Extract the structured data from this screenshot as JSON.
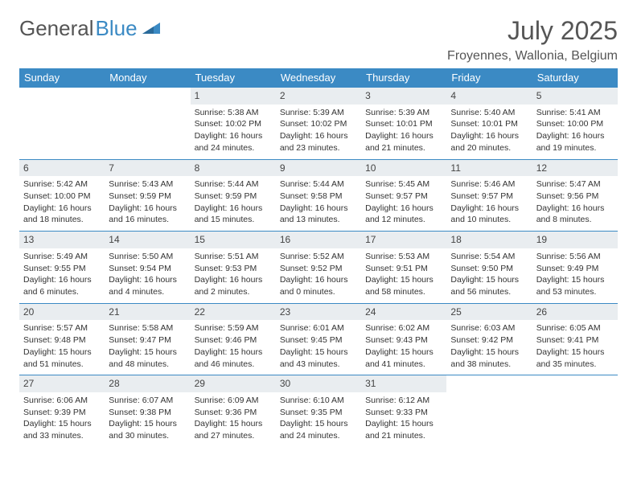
{
  "brand": {
    "name1": "General",
    "name2": "Blue"
  },
  "title": "July 2025",
  "location": "Froyennes, Wallonia, Belgium",
  "weekdays": [
    "Sunday",
    "Monday",
    "Tuesday",
    "Wednesday",
    "Thursday",
    "Friday",
    "Saturday"
  ],
  "colors": {
    "accent": "#3b8ac4",
    "dayrow_bg": "#e9edf0",
    "text": "#333"
  },
  "weeks": [
    [
      null,
      null,
      {
        "n": "1",
        "sr": "5:38 AM",
        "ss": "10:02 PM",
        "dl": "16 hours and 24 minutes."
      },
      {
        "n": "2",
        "sr": "5:39 AM",
        "ss": "10:02 PM",
        "dl": "16 hours and 23 minutes."
      },
      {
        "n": "3",
        "sr": "5:39 AM",
        "ss": "10:01 PM",
        "dl": "16 hours and 21 minutes."
      },
      {
        "n": "4",
        "sr": "5:40 AM",
        "ss": "10:01 PM",
        "dl": "16 hours and 20 minutes."
      },
      {
        "n": "5",
        "sr": "5:41 AM",
        "ss": "10:00 PM",
        "dl": "16 hours and 19 minutes."
      }
    ],
    [
      {
        "n": "6",
        "sr": "5:42 AM",
        "ss": "10:00 PM",
        "dl": "16 hours and 18 minutes."
      },
      {
        "n": "7",
        "sr": "5:43 AM",
        "ss": "9:59 PM",
        "dl": "16 hours and 16 minutes."
      },
      {
        "n": "8",
        "sr": "5:44 AM",
        "ss": "9:59 PM",
        "dl": "16 hours and 15 minutes."
      },
      {
        "n": "9",
        "sr": "5:44 AM",
        "ss": "9:58 PM",
        "dl": "16 hours and 13 minutes."
      },
      {
        "n": "10",
        "sr": "5:45 AM",
        "ss": "9:57 PM",
        "dl": "16 hours and 12 minutes."
      },
      {
        "n": "11",
        "sr": "5:46 AM",
        "ss": "9:57 PM",
        "dl": "16 hours and 10 minutes."
      },
      {
        "n": "12",
        "sr": "5:47 AM",
        "ss": "9:56 PM",
        "dl": "16 hours and 8 minutes."
      }
    ],
    [
      {
        "n": "13",
        "sr": "5:49 AM",
        "ss": "9:55 PM",
        "dl": "16 hours and 6 minutes."
      },
      {
        "n": "14",
        "sr": "5:50 AM",
        "ss": "9:54 PM",
        "dl": "16 hours and 4 minutes."
      },
      {
        "n": "15",
        "sr": "5:51 AM",
        "ss": "9:53 PM",
        "dl": "16 hours and 2 minutes."
      },
      {
        "n": "16",
        "sr": "5:52 AM",
        "ss": "9:52 PM",
        "dl": "16 hours and 0 minutes."
      },
      {
        "n": "17",
        "sr": "5:53 AM",
        "ss": "9:51 PM",
        "dl": "15 hours and 58 minutes."
      },
      {
        "n": "18",
        "sr": "5:54 AM",
        "ss": "9:50 PM",
        "dl": "15 hours and 56 minutes."
      },
      {
        "n": "19",
        "sr": "5:56 AM",
        "ss": "9:49 PM",
        "dl": "15 hours and 53 minutes."
      }
    ],
    [
      {
        "n": "20",
        "sr": "5:57 AM",
        "ss": "9:48 PM",
        "dl": "15 hours and 51 minutes."
      },
      {
        "n": "21",
        "sr": "5:58 AM",
        "ss": "9:47 PM",
        "dl": "15 hours and 48 minutes."
      },
      {
        "n": "22",
        "sr": "5:59 AM",
        "ss": "9:46 PM",
        "dl": "15 hours and 46 minutes."
      },
      {
        "n": "23",
        "sr": "6:01 AM",
        "ss": "9:45 PM",
        "dl": "15 hours and 43 minutes."
      },
      {
        "n": "24",
        "sr": "6:02 AM",
        "ss": "9:43 PM",
        "dl": "15 hours and 41 minutes."
      },
      {
        "n": "25",
        "sr": "6:03 AM",
        "ss": "9:42 PM",
        "dl": "15 hours and 38 minutes."
      },
      {
        "n": "26",
        "sr": "6:05 AM",
        "ss": "9:41 PM",
        "dl": "15 hours and 35 minutes."
      }
    ],
    [
      {
        "n": "27",
        "sr": "6:06 AM",
        "ss": "9:39 PM",
        "dl": "15 hours and 33 minutes."
      },
      {
        "n": "28",
        "sr": "6:07 AM",
        "ss": "9:38 PM",
        "dl": "15 hours and 30 minutes."
      },
      {
        "n": "29",
        "sr": "6:09 AM",
        "ss": "9:36 PM",
        "dl": "15 hours and 27 minutes."
      },
      {
        "n": "30",
        "sr": "6:10 AM",
        "ss": "9:35 PM",
        "dl": "15 hours and 24 minutes."
      },
      {
        "n": "31",
        "sr": "6:12 AM",
        "ss": "9:33 PM",
        "dl": "15 hours and 21 minutes."
      },
      null,
      null
    ]
  ]
}
